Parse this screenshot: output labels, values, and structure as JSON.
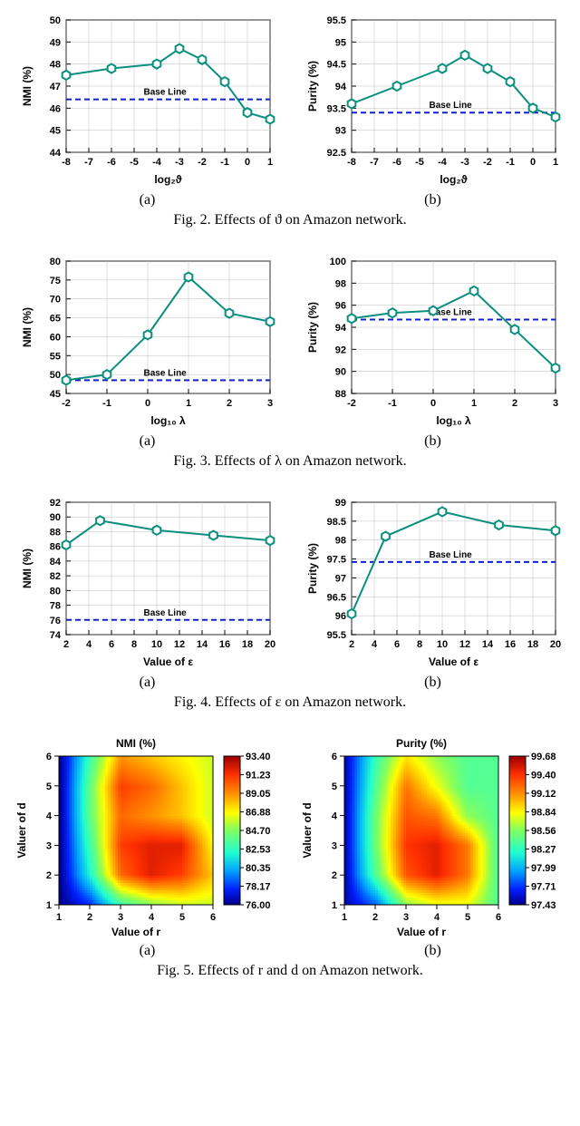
{
  "fig2": {
    "caption": "Fig. 2. Effects of ϑ on Amazon network.",
    "xlabel": "log₂ϑ",
    "baseline_label": "Base Line",
    "line_color": "#0a8f7f",
    "marker_fill": "#ffffff",
    "baseline_color": "#1020d0",
    "grid_color": "#bfbfbf",
    "a": {
      "ylabel": "NMI (%)",
      "xticks": [
        -8,
        -7,
        -6,
        -5,
        -4,
        -3,
        -2,
        -1,
        0,
        1
      ],
      "yticks": [
        44,
        45,
        46,
        47,
        48,
        49,
        50
      ],
      "x": [
        -8,
        -6,
        -4,
        -3,
        -2,
        -1,
        0,
        1
      ],
      "y": [
        47.5,
        47.8,
        48.0,
        48.7,
        48.2,
        47.2,
        45.8,
        45.5
      ],
      "baseline": 46.4,
      "sub": "(a)"
    },
    "b": {
      "ylabel": "Purity (%)",
      "xticks": [
        -8,
        -7,
        -6,
        -5,
        -4,
        -3,
        -2,
        -1,
        0,
        1
      ],
      "yticks": [
        92.5,
        93.0,
        93.5,
        94.0,
        94.5,
        95.0,
        95.5
      ],
      "x": [
        -8,
        -6,
        -4,
        -3,
        -2,
        -1,
        0,
        1
      ],
      "y": [
        93.6,
        94.0,
        94.4,
        94.7,
        94.4,
        94.1,
        93.5,
        93.3
      ],
      "baseline": 93.4,
      "sub": "(b)"
    }
  },
  "fig3": {
    "caption": "Fig. 3. Effects of λ on Amazon network.",
    "xlabel": "log₁₀ λ",
    "baseline_label": "Base Line",
    "line_color": "#0a8f7f",
    "baseline_color": "#1020d0",
    "grid_color": "#bfbfbf",
    "a": {
      "ylabel": "NMI (%)",
      "xticks": [
        -2,
        -1,
        0,
        1,
        2,
        3
      ],
      "yticks": [
        45,
        50,
        55,
        60,
        65,
        70,
        75,
        80
      ],
      "x": [
        -2,
        -1,
        0,
        1,
        2,
        3
      ],
      "y": [
        48.5,
        50.0,
        60.5,
        75.8,
        66.2,
        64.0
      ],
      "baseline": 48.5,
      "sub": "(a)"
    },
    "b": {
      "ylabel": "Purity (%)",
      "xticks": [
        -2,
        -1,
        0,
        1,
        2,
        3
      ],
      "yticks": [
        88,
        90,
        92,
        94,
        96,
        98,
        100
      ],
      "x": [
        -2,
        -1,
        0,
        1,
        2,
        3
      ],
      "y": [
        94.8,
        95.3,
        95.5,
        97.3,
        93.8,
        90.3
      ],
      "baseline": 94.7,
      "sub": "(b)"
    }
  },
  "fig4": {
    "caption": "Fig. 4. Effects of ε on Amazon network.",
    "xlabel": "Value of ε",
    "baseline_label": "Base Line",
    "line_color": "#0a8f7f",
    "baseline_color": "#1020d0",
    "grid_color": "#bfbfbf",
    "a": {
      "ylabel": "NMI (%)",
      "xticks": [
        2,
        4,
        6,
        8,
        10,
        12,
        14,
        16,
        18,
        20
      ],
      "yticks": [
        74,
        76,
        78,
        80,
        82,
        84,
        86,
        88,
        90,
        92
      ],
      "x": [
        2,
        5,
        10,
        15,
        20
      ],
      "y": [
        86.2,
        89.5,
        88.2,
        87.5,
        86.8
      ],
      "baseline": 76.0,
      "sub": "(a)"
    },
    "b": {
      "ylabel": "Purity (%)",
      "xticks": [
        2,
        4,
        6,
        8,
        10,
        12,
        14,
        16,
        18,
        20
      ],
      "yticks": [
        95.5,
        96.0,
        96.5,
        97.0,
        97.5,
        98.0,
        98.5,
        99.0
      ],
      "x": [
        2,
        5,
        10,
        15,
        20
      ],
      "y": [
        96.05,
        98.1,
        98.75,
        98.4,
        98.25
      ],
      "baseline": 97.42,
      "sub": "(b)"
    }
  },
  "fig5": {
    "caption": "Fig. 5. Effects of r and d on Amazon network.",
    "xlabel": "Value of r",
    "ylabel": "Valuer of d",
    "ticks": [
      1,
      2,
      3,
      4,
      5,
      6
    ],
    "a": {
      "title": "NMI (%)",
      "cbar": [
        93.4,
        91.23,
        89.05,
        86.88,
        84.7,
        82.53,
        80.35,
        78.17,
        76.0
      ],
      "sub": "(a)",
      "range": [
        76.0,
        93.4
      ],
      "data": [
        [
          76,
          78,
          83,
          85,
          86,
          86
        ],
        [
          76,
          82,
          90,
          92,
          91,
          88
        ],
        [
          76,
          83,
          91,
          92,
          92,
          87
        ],
        [
          76,
          84,
          90,
          89,
          88,
          86
        ],
        [
          76,
          84,
          91,
          90,
          88,
          86
        ],
        [
          76,
          83,
          89,
          88,
          87,
          86
        ]
      ]
    },
    "b": {
      "title": "Purity (%)",
      "cbar": [
        99.68,
        99.4,
        99.12,
        98.84,
        98.56,
        98.27,
        97.99,
        97.71,
        97.43
      ],
      "sub": "(b)",
      "range": [
        97.43,
        99.68
      ],
      "data": [
        [
          97.5,
          97.8,
          98.6,
          98.8,
          98.8,
          98.4
        ],
        [
          97.5,
          98.4,
          99.3,
          99.5,
          99.2,
          98.4
        ],
        [
          97.5,
          98.5,
          99.4,
          99.5,
          99.2,
          98.4
        ],
        [
          97.5,
          98.5,
          99.3,
          99.2,
          98.6,
          98.4
        ],
        [
          97.5,
          98.4,
          99.2,
          98.8,
          98.4,
          98.4
        ],
        [
          97.5,
          98.3,
          98.9,
          98.6,
          98.4,
          98.4
        ]
      ]
    },
    "colormap": [
      [
        0.0,
        "#000090"
      ],
      [
        0.1,
        "#0020ff"
      ],
      [
        0.22,
        "#00a0ff"
      ],
      [
        0.35,
        "#20ffd0"
      ],
      [
        0.5,
        "#80ff60"
      ],
      [
        0.62,
        "#ffff00"
      ],
      [
        0.75,
        "#ff9000"
      ],
      [
        0.88,
        "#ff3000"
      ],
      [
        1.0,
        "#a00000"
      ]
    ]
  }
}
